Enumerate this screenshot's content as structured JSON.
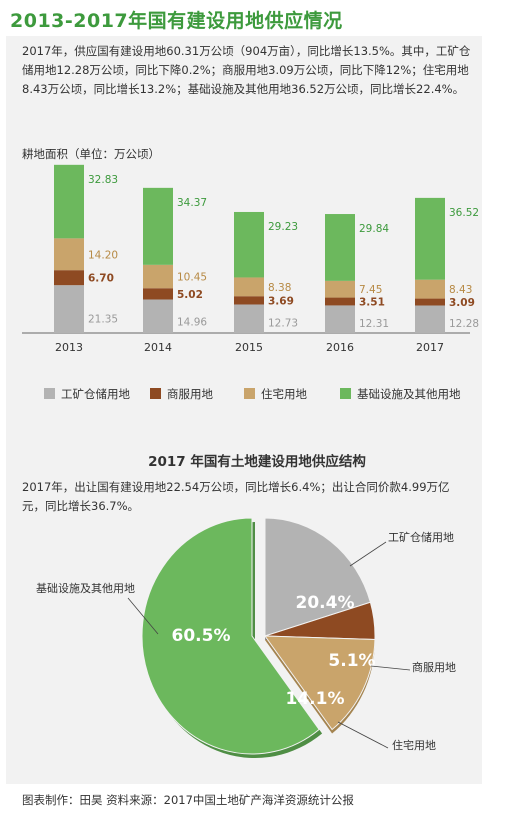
{
  "title": "2013-2017年国有建设用地供应情况",
  "summary_bar": "2017年，供应国有建设用地60.31万公顷（904万亩），同比增长13.5%。其中，工矿仓储用地12.28万公顷，同比下降0.2%；商服用地3.09万公顷，同比下降12%；住宅用地8.43万公顷，同比增长13.2%；基础设施及其他用地36.52万公顷，同比增长22.4%。",
  "bar_unit_label": "耕地面积（单位：万公顷）",
  "legend": [
    "工矿仓储用地",
    "商服用地",
    "住宅用地",
    "基础设施及其他用地"
  ],
  "pie_title": "2017 年国有土地建设用地供应结构",
  "summary_pie": "2017年，出让国有建设用地22.54万公顷，同比增长6.4%；出让合同价款4.99万亿元，同比增长36.7%。",
  "footer": "图表制作：田昊   资料来源：2017中国土地矿产海洋资源统计公报",
  "colors": {
    "title": "#3d9a3d",
    "industrial": "#b3b3b3",
    "commercial": "#8e4a22",
    "residential": "#c9a46b",
    "infrastructure": "#6cb85d",
    "infrastructure_dark": "#4f8e45"
  },
  "chart_data": [
    {
      "type": "bar",
      "stacked": true,
      "ylabel": "耕地面积（单位：万公顷）",
      "categories": [
        "2013",
        "2014",
        "2015",
        "2016",
        "2017"
      ],
      "series": [
        {
          "name": "工矿仓储用地",
          "values": [
            21.35,
            14.96,
            12.73,
            12.31,
            12.28
          ],
          "labels": [
            "21.35",
            "14.96",
            "12.73",
            "12.31",
            "12.28"
          ]
        },
        {
          "name": "商服用地",
          "values": [
            6.7,
            5.02,
            3.69,
            3.51,
            3.09
          ],
          "labels": [
            "6.70",
            "5.02",
            "3.69",
            "3.51",
            "3.09"
          ]
        },
        {
          "name": "住宅用地",
          "values": [
            14.2,
            10.45,
            8.38,
            7.45,
            8.43
          ],
          "labels": [
            "14.20",
            "10.45",
            "8.38",
            "7.45",
            "8.43"
          ]
        },
        {
          "name": "基础设施及其他用地",
          "values": [
            32.83,
            34.37,
            29.23,
            29.84,
            36.52
          ],
          "labels": [
            "32.83",
            "34.37",
            "29.23",
            "29.84",
            "36.52"
          ]
        }
      ],
      "legend_position": "bottom",
      "grid": false
    },
    {
      "type": "pie",
      "title": "2017 年国有土地建设用地供应结构",
      "slices": [
        {
          "name": "工矿仓储用地",
          "value": 20.4,
          "label": "20.4%"
        },
        {
          "name": "商服用地",
          "value": 5.1,
          "label": "5.1%"
        },
        {
          "name": "住宅用地",
          "value": 14.1,
          "label": "14.1%"
        },
        {
          "name": "基础设施及其他用地",
          "value": 60.5,
          "label": "60.5%"
        }
      ]
    }
  ]
}
